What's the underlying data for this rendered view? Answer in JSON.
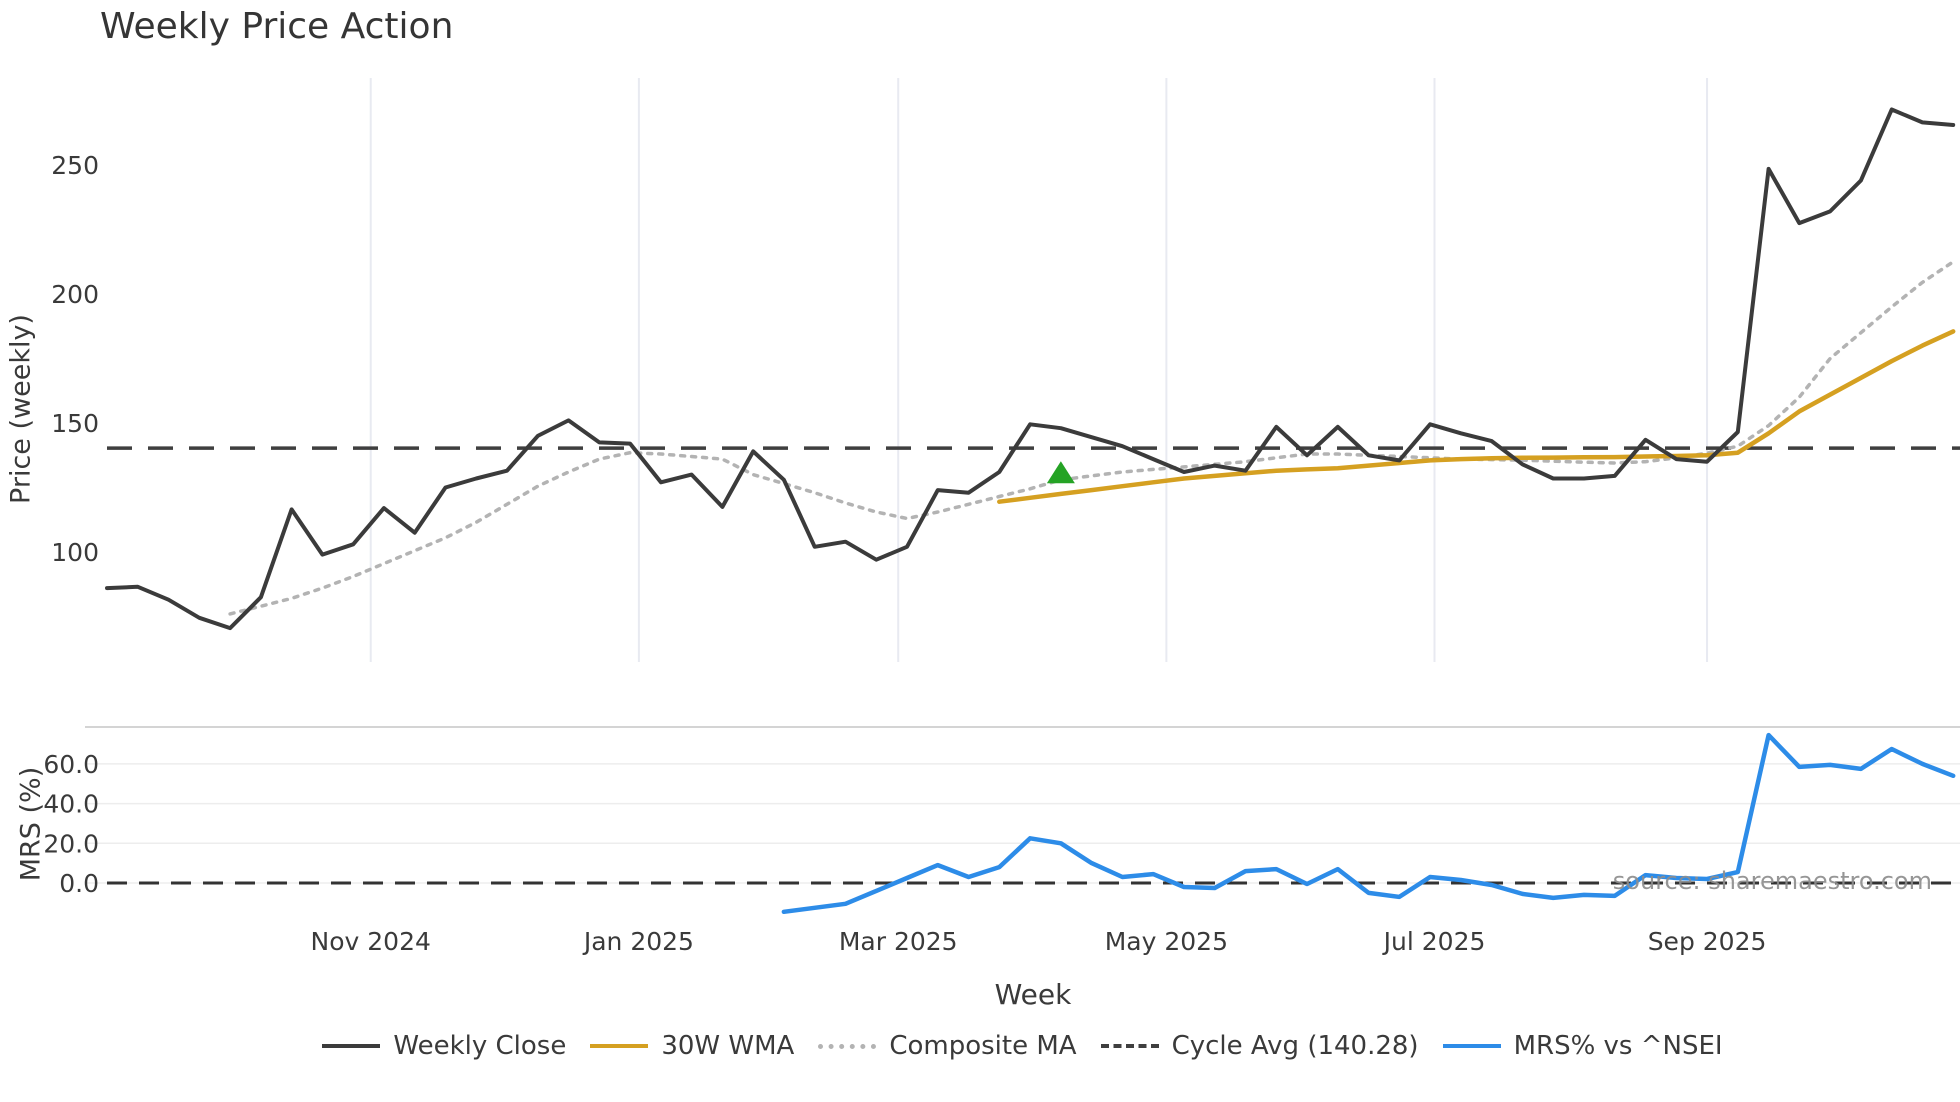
{
  "chart": {
    "title": "Weekly Price Action",
    "price_axis_label": "Price (weekly)",
    "mrs_axis_label": "MRS (%)",
    "x_axis_label": "Week",
    "watermark": "source: sharemaestro.com"
  },
  "legend": {
    "items": [
      {
        "label": "Weekly Close",
        "color": "#3b3b3b",
        "style": "solid"
      },
      {
        "label": "30W WMA",
        "color": "#d5a021",
        "style": "solid"
      },
      {
        "label": "Composite MA",
        "color": "#b3b3b3",
        "style": "dotted"
      },
      {
        "label": "Cycle Avg (140.28)",
        "color": "#3f3f3f",
        "style": "dashed"
      },
      {
        "label": "MRS% vs ^NSEI",
        "color": "#2d8ce8",
        "style": "solid"
      }
    ]
  },
  "chart_data": {
    "type": "line",
    "title": "Weekly Price Action",
    "xlabel": "Week",
    "x_unit": "weekly, week 0 = 2024-09-02, 61 weeks through 2025-10-27",
    "x_ticks": [
      {
        "week_index": 8.571,
        "label": "Nov 2024"
      },
      {
        "week_index": 17.286,
        "label": "Jan 2025"
      },
      {
        "week_index": 25.714,
        "label": "Mar 2025"
      },
      {
        "week_index": 34.429,
        "label": "May 2025"
      },
      {
        "week_index": 43.143,
        "label": "Jul 2025"
      },
      {
        "week_index": 52.0,
        "label": "Sep 2025"
      }
    ],
    "panels": [
      {
        "name": "price",
        "ylabel": "Price (weekly)",
        "yticks": [
          250,
          200,
          150,
          100
        ],
        "ylim": [
          57,
          284
        ],
        "grid": "vertical-only",
        "series": [
          {
            "name": "Cycle Avg (140.28)",
            "color": "#3f3f3f",
            "style": "dashed",
            "dash": "25 16",
            "width": 3.5,
            "value": 140.28
          },
          {
            "name": "Composite MA",
            "color": "#b3b3b3",
            "style": "dotted",
            "dash": "4 7",
            "width": 3.5,
            "start_week": 4,
            "values": [
              76,
              79,
              82,
              86,
              90.5,
              95.5,
              100.5,
              105.5,
              111.5,
              118.5,
              125.5,
              131,
              136,
              138.5,
              138,
              137,
              136,
              130,
              126.5,
              123,
              119,
              115.5,
              113,
              115.5,
              118.5,
              121.5,
              124.5,
              128,
              129.5,
              131,
              132,
              133,
              134,
              135,
              136.5,
              138,
              138,
              137.5,
              137,
              136.5,
              136,
              135.8,
              135.6,
              135.2,
              134.8,
              134.5,
              135,
              136.5,
              138.3,
              141,
              149,
              160,
              175,
              185,
              195,
              204.5,
              212.5
            ]
          },
          {
            "name": "30W WMA",
            "color": "#d5a021",
            "style": "solid",
            "dash": "",
            "width": 4.5,
            "start_week": 29,
            "values": [
              119.5,
              121,
              122.5,
              124,
              125.5,
              127,
              128.5,
              129.5,
              130.5,
              131.5,
              132,
              132.5,
              133.5,
              134.5,
              135.5,
              136,
              136.3,
              136.5,
              136.6,
              136.7,
              136.8,
              137,
              137.2,
              137.5,
              138.5,
              146,
              154.5,
              161,
              167.5,
              174,
              180,
              185.5
            ]
          },
          {
            "name": "Weekly Close",
            "color": "#3b3b3b",
            "style": "solid",
            "dash": "",
            "width": 4,
            "start_week": 0,
            "values": [
              86,
              86.5,
              81.5,
              74.5,
              70.5,
              82.5,
              116.5,
              99,
              103,
              117,
              107.5,
              125,
              128.5,
              131.5,
              145,
              151,
              142.5,
              142,
              127,
              130,
              117.5,
              139,
              128,
              102,
              104,
              97,
              102,
              124,
              123,
              131,
              149.5,
              148,
              144.5,
              141,
              136,
              131,
              133.5,
              131.5,
              148.5,
              137.5,
              148.5,
              137.5,
              135.5,
              149.5,
              146,
              143,
              134,
              128.5,
              128.5,
              129.5,
              143.5,
              136,
              135,
              146.5,
              248.5,
              227.5,
              232,
              244,
              271.5,
              266.5,
              265.5
            ]
          }
        ],
        "markers": [
          {
            "type": "triangle-up",
            "color": "#25a325",
            "week": 31,
            "price": 130.5
          }
        ]
      },
      {
        "name": "mrs",
        "ylabel": "MRS (%)",
        "yticks": [
          "60.0",
          "40.0",
          "20.0",
          "0.0"
        ],
        "ylim": [
          -25,
          79
        ],
        "grid": "horizontal-only",
        "series": [
          {
            "name": "Zero Line",
            "color": "#333333",
            "style": "dashed",
            "dash": "20 12",
            "width": 3,
            "value": 0.0
          },
          {
            "name": "MRS% vs ^NSEI",
            "color": "#2d8ce8",
            "style": "solid",
            "dash": "",
            "width": 4.5,
            "start_week": 22,
            "values": [
              -14.5,
              -12.5,
              -10.5,
              -4,
              2.5,
              9,
              3,
              8,
              22.5,
              20,
              10,
              3,
              4.5,
              -2,
              -2.5,
              6,
              7,
              -0.5,
              7,
              -5,
              -7,
              3,
              1.5,
              -1,
              -5.5,
              -7.5,
              -6,
              -6.5,
              4,
              2.5,
              2,
              5.5,
              74.5,
              58.5,
              59.5,
              57.5,
              67.5,
              60,
              54
            ]
          }
        ]
      }
    ],
    "legend_entries": [
      "Weekly Close",
      "30W WMA",
      "Composite MA",
      "Cycle Avg (140.28)",
      "MRS% vs ^NSEI"
    ],
    "legend_position": "bottom-center",
    "watermark": "source: sharemaestro.com"
  }
}
